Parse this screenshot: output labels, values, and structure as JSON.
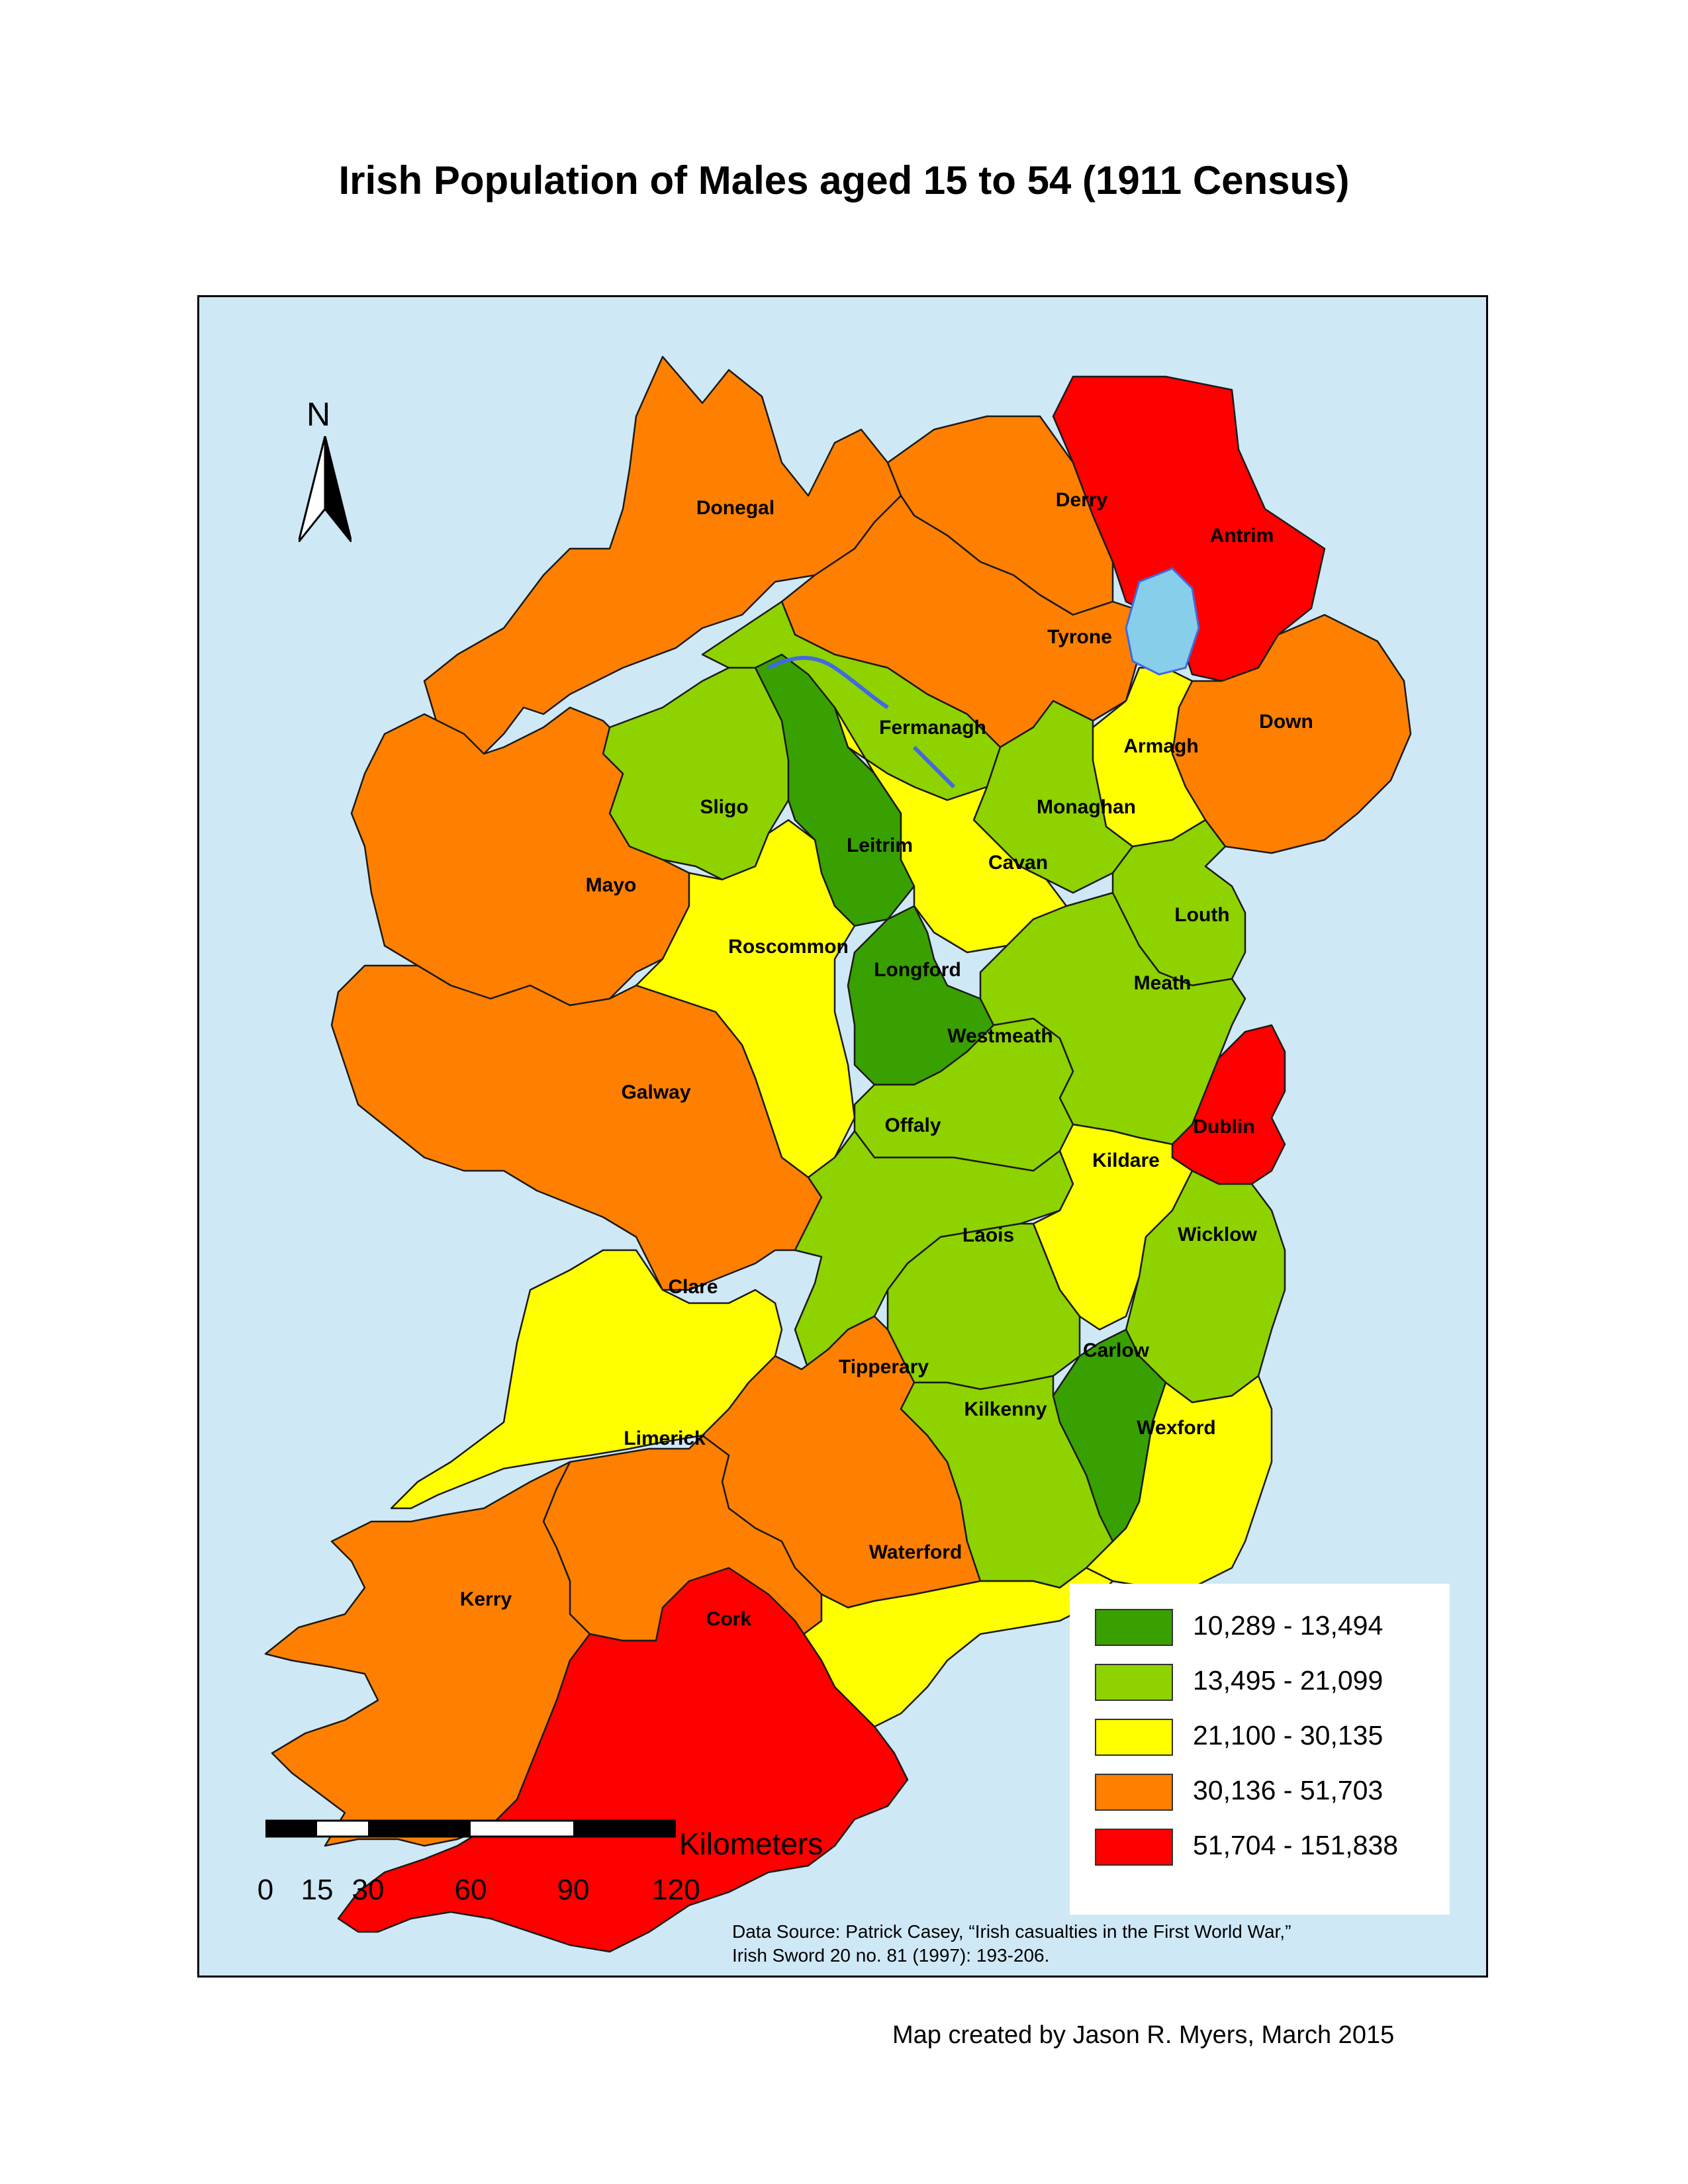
{
  "title": "Irish Population of Males aged 15 to 54 (1911 Census)",
  "north_label": "N",
  "legend": {
    "classes": [
      {
        "range": "10,289 - 13,494",
        "color": "#38a000"
      },
      {
        "range": "13,495 - 21,099",
        "color": "#8ed200"
      },
      {
        "range": "21,100 - 30,135",
        "color": "#ffff00"
      },
      {
        "range": "30,136 - 51,703",
        "color": "#ff8000"
      },
      {
        "range": "51,704 - 151,838",
        "color": "#ff0000"
      }
    ]
  },
  "colors": {
    "sea": "#cfe8f6",
    "lake": "#87ceeb",
    "lake_outline": "#4169e1"
  },
  "counties": [
    {
      "name": "Donegal",
      "class": 3
    },
    {
      "name": "Derry",
      "class": 3
    },
    {
      "name": "Antrim",
      "class": 4
    },
    {
      "name": "Tyrone",
      "class": 3
    },
    {
      "name": "Down",
      "class": 3
    },
    {
      "name": "Armagh",
      "class": 2
    },
    {
      "name": "Fermanagh",
      "class": 1
    },
    {
      "name": "Monaghan",
      "class": 1
    },
    {
      "name": "Sligo",
      "class": 1
    },
    {
      "name": "Leitrim",
      "class": 0
    },
    {
      "name": "Cavan",
      "class": 2
    },
    {
      "name": "Louth",
      "class": 1
    },
    {
      "name": "Mayo",
      "class": 3
    },
    {
      "name": "Roscommon",
      "class": 2
    },
    {
      "name": "Longford",
      "class": 0
    },
    {
      "name": "Meath",
      "class": 1
    },
    {
      "name": "Westmeath",
      "class": 1
    },
    {
      "name": "Dublin",
      "class": 4
    },
    {
      "name": "Galway",
      "class": 3
    },
    {
      "name": "Offaly",
      "class": 1
    },
    {
      "name": "Kildare",
      "class": 2
    },
    {
      "name": "Laois",
      "class": 1
    },
    {
      "name": "Wicklow",
      "class": 1
    },
    {
      "name": "Clare",
      "class": 2
    },
    {
      "name": "Carlow",
      "class": 0
    },
    {
      "name": "Tipperary",
      "class": 3
    },
    {
      "name": "Kilkenny",
      "class": 1
    },
    {
      "name": "Wexford",
      "class": 2
    },
    {
      "name": "Limerick",
      "class": 3
    },
    {
      "name": "Waterford",
      "class": 2
    },
    {
      "name": "Kerry",
      "class": 3
    },
    {
      "name": "Cork",
      "class": 4
    }
  ],
  "scale_bar": {
    "unit": "Kilometers",
    "ticks": [
      "0",
      "15",
      "30",
      "60",
      "90",
      "120"
    ]
  },
  "data_source": {
    "line1": "Data Source: Patrick Casey, “Irish casualties in the First World War,”",
    "line2": "Irish Sword 20 no. 81 (1997): 193-206."
  },
  "credit": "Map created by Jason R. Myers, March 2015"
}
